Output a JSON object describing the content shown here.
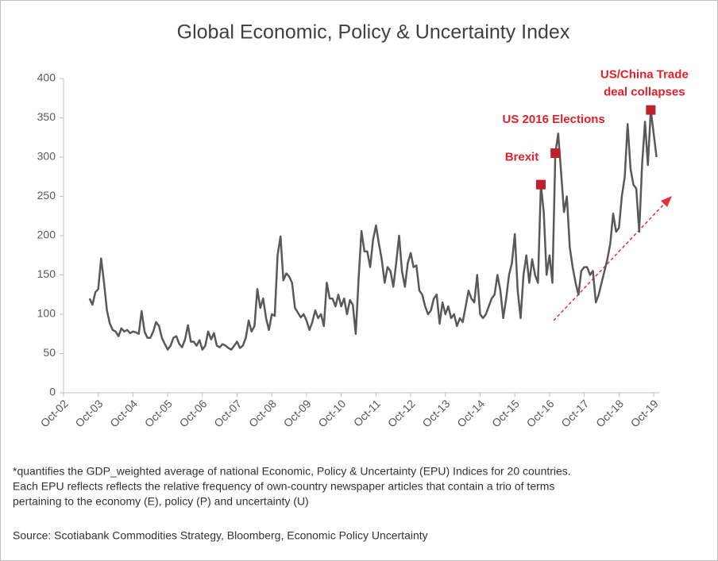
{
  "chart_data": {
    "type": "line",
    "title": "Global Economic, Policy & Uncertainty Index",
    "categories": [
      "Oct-02",
      null,
      null,
      null,
      null,
      null,
      null,
      null,
      null,
      null,
      null,
      null,
      "Oct-03",
      null,
      null,
      null,
      null,
      null,
      null,
      null,
      null,
      null,
      null,
      null,
      "Oct-04",
      null,
      null,
      null,
      null,
      null,
      null,
      null,
      null,
      null,
      null,
      null,
      "Oct-05",
      null,
      null,
      null,
      null,
      null,
      null,
      null,
      null,
      null,
      null,
      null,
      "Oct-06",
      null,
      null,
      null,
      null,
      null,
      null,
      null,
      null,
      null,
      null,
      null,
      "Oct-07",
      null,
      null,
      null,
      null,
      null,
      null,
      null,
      null,
      null,
      null,
      null,
      "Oct-08",
      null,
      null,
      null,
      null,
      null,
      null,
      null,
      null,
      null,
      null,
      null,
      "Oct-09",
      null,
      null,
      null,
      null,
      null,
      null,
      null,
      null,
      null,
      null,
      null,
      "Oct-10",
      null,
      null,
      null,
      null,
      null,
      null,
      null,
      null,
      null,
      null,
      null,
      "Oct-11",
      null,
      null,
      null,
      null,
      null,
      null,
      null,
      null,
      null,
      null,
      null,
      "Oct-12",
      null,
      null,
      null,
      null,
      null,
      null,
      null,
      null,
      null,
      null,
      null,
      "Oct-13",
      null,
      null,
      null,
      null,
      null,
      null,
      null,
      null,
      null,
      null,
      null,
      "Oct-14",
      null,
      null,
      null,
      null,
      null,
      null,
      null,
      null,
      null,
      null,
      null,
      "Oct-15",
      null,
      null,
      null,
      null,
      null,
      null,
      null,
      null,
      null,
      null,
      null,
      "Oct-16",
      null,
      null,
      null,
      null,
      null,
      null,
      null,
      null,
      null,
      null,
      null,
      "Oct-17",
      null,
      null,
      null,
      null,
      null,
      null,
      null,
      null,
      null,
      null,
      null,
      "Oct-18",
      null,
      null,
      null,
      null,
      null,
      null,
      null,
      null,
      null,
      null,
      null,
      "Oct-19",
      null
    ],
    "series": [
      {
        "color": "#595959",
        "values": [
          null,
          null,
          null,
          null,
          null,
          null,
          null,
          null,
          null,
          120,
          112,
          128,
          132,
          171,
          140,
          105,
          88,
          80,
          78,
          72,
          82,
          78,
          80,
          76,
          78,
          77,
          75,
          104,
          78,
          70,
          70,
          78,
          90,
          85,
          70,
          62,
          55,
          60,
          70,
          72,
          62,
          58,
          68,
          86,
          65,
          65,
          60,
          67,
          55,
          60,
          78,
          68,
          76,
          60,
          58,
          62,
          60,
          57,
          55,
          60,
          65,
          57,
          60,
          70,
          92,
          78,
          85,
          132,
          108,
          120,
          95,
          80,
          100,
          98,
          175,
          199,
          143,
          152,
          148,
          140,
          108,
          102,
          96,
          100,
          92,
          80,
          90,
          105,
          95,
          100,
          85,
          140,
          120,
          120,
          110,
          125,
          110,
          120,
          100,
          118,
          112,
          75,
          145,
          206,
          180,
          180,
          160,
          195,
          213,
          190,
          170,
          140,
          160,
          155,
          135,
          165,
          200,
          155,
          135,
          165,
          178,
          160,
          162,
          130,
          125,
          110,
          100,
          105,
          120,
          125,
          88,
          115,
          100,
          110,
          95,
          100,
          85,
          95,
          90,
          110,
          130,
          120,
          115,
          150,
          100,
          95,
          100,
          110,
          120,
          125,
          150,
          130,
          95,
          120,
          150,
          165,
          202,
          130,
          95,
          150,
          175,
          140,
          170,
          150,
          140,
          265,
          230,
          150,
          175,
          140,
          305,
          330,
          280,
          230,
          250,
          185,
          160,
          140,
          125,
          155,
          160,
          160,
          150,
          155,
          115,
          125,
          140,
          155,
          170,
          190,
          228,
          205,
          210,
          250,
          275,
          342,
          285,
          265,
          260,
          205,
          290,
          345,
          290,
          360,
          330,
          300
        ]
      }
    ],
    "ylim": [
      0,
      400
    ],
    "yticks": [
      0,
      50,
      100,
      150,
      200,
      250,
      300,
      350,
      400
    ],
    "annotations": [
      [
        "Brexit"
      ],
      [
        "US 2016 Elections"
      ],
      [
        "US/China  Trade",
        "deal collapses"
      ]
    ],
    "annotation_color": "#e0202a",
    "notes": [
      "*quantifies the GDP_weighted average of national Economic, Policy & Uncertainty (EPU) Indices for 20 countries.",
      "Each EPU reflects  reflects the relative frequency of own-country newspaper articles that contain a trio of terms",
      "pertaining to the economy (E),  policy (P) and uncertainty (U)"
    ],
    "source": "Source: Scotiabank Commodities Strategy, Bloomberg, Economic Policy Uncertainty"
  }
}
